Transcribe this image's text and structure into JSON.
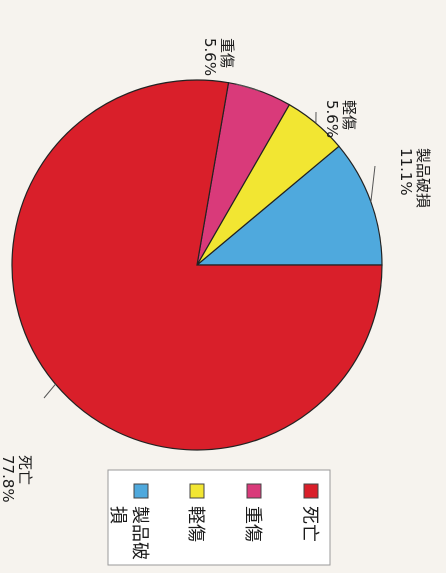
{
  "chart_data": {
    "type": "pie",
    "categories": [
      "死亡",
      "重傷",
      "軽傷",
      "製品破損"
    ],
    "values": [
      77.8,
      5.6,
      5.6,
      11.1
    ],
    "percent_labels": [
      "77.8%",
      "5.6%",
      "5.6%",
      "11.1%"
    ],
    "colors": [
      "#d91f2a",
      "#d93a7a",
      "#f2e632",
      "#4fa9dd"
    ],
    "legend": {
      "placement": "bottom",
      "entries": [
        "死亡",
        "重傷",
        "軽傷",
        "製品破損"
      ]
    },
    "title": "",
    "orientation": "rotated 90° clockwise"
  }
}
